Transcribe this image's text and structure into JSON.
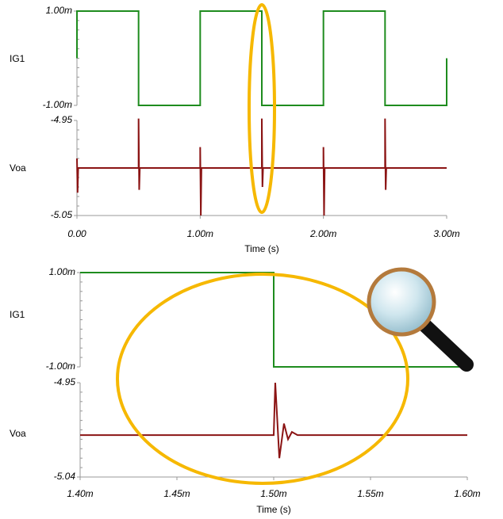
{
  "chart_data": [
    {
      "type": "line",
      "ylabel": "IG1",
      "color": "#1e8c1e",
      "x": [
        0,
        0,
        0.0005,
        0.0005,
        0.001,
        0.001,
        0.0015,
        0.0015,
        0.002,
        0.002,
        0.0025,
        0.0025,
        0.003,
        0.003
      ],
      "values": [
        0,
        0.001,
        0.001,
        -0.001,
        -0.001,
        0.001,
        0.001,
        -0.001,
        -0.001,
        0.001,
        0.001,
        -0.001,
        -0.001,
        0
      ],
      "xlim": [
        0,
        0.003
      ],
      "ylim": [
        -0.001,
        0.001
      ],
      "yticks": [
        {
          "value": 0.001,
          "label": "1.00m"
        },
        {
          "value": -0.001,
          "label": "-1.00m"
        }
      ]
    },
    {
      "type": "line",
      "ylabel": "Voa",
      "xlabel": "Time (s)",
      "color": "#8b1414",
      "x": [
        0,
        5e-06,
        1e-05,
        0.0005,
        0.0005,
        0.000505,
        0.00051,
        0.001,
        0.001,
        0.001005,
        0.00101,
        0.0015,
        0.0015,
        0.001505,
        0.00151,
        0.002,
        0.002,
        0.002005,
        0.00201,
        0.0025,
        0.0025,
        0.002505,
        0.00251,
        0.003
      ],
      "values": [
        -4.99,
        -5.026,
        -5.0,
        -5.0,
        -4.948,
        -5.023,
        -5.0,
        -5.0,
        -4.978,
        -5.05,
        -5.0,
        -5.0,
        -4.948,
        -5.02,
        -5.0,
        -5.0,
        -4.978,
        -5.05,
        -5.0,
        -5.0,
        -4.948,
        -5.023,
        -5.0,
        -5.0
      ],
      "xlim": [
        0,
        0.003
      ],
      "ylim": [
        -5.05,
        -4.95
      ],
      "yticks": [
        -4.95,
        -5.05
      ],
      "xticks": [
        {
          "value": 0,
          "label": "0.00"
        },
        {
          "value": 0.001,
          "label": "1.00m"
        },
        {
          "value": 0.002,
          "label": "2.00m"
        },
        {
          "value": 0.003,
          "label": "3.00m"
        }
      ]
    },
    {
      "type": "line",
      "ylabel": "IG1",
      "color": "#1e8c1e",
      "x": [
        0.0014,
        0.0015,
        0.0015,
        0.0016
      ],
      "values": [
        0.001,
        0.001,
        -0.001,
        -0.001
      ],
      "xlim": [
        0.0014,
        0.0016
      ],
      "ylim": [
        -0.001,
        0.001
      ],
      "yticks": [
        {
          "value": 0.001,
          "label": "1.00m"
        },
        {
          "value": -0.001,
          "label": "-1.00m"
        }
      ]
    },
    {
      "type": "line",
      "ylabel": "Voa",
      "xlabel": "Time (s)",
      "color": "#8b1414",
      "x": [
        0.0014,
        0.0015,
        0.0015008,
        0.0015029,
        0.0015053,
        0.0015074,
        0.0015094,
        0.0015123,
        0.0016
      ],
      "values": [
        -5.0,
        -5.0,
        -4.95,
        -5.022,
        -4.989,
        -5.004,
        -4.997,
        -5.0,
        -5.0
      ],
      "xlim": [
        0.0014,
        0.0016
      ],
      "ylim": [
        -5.04,
        -4.95
      ],
      "yticks": [
        -4.95,
        -5.04
      ],
      "xticks": [
        {
          "value": 0.0014,
          "label": "1.40m"
        },
        {
          "value": 0.00145,
          "label": "1.45m"
        },
        {
          "value": 0.0015,
          "label": "1.50m"
        },
        {
          "value": 0.00155,
          "label": "1.55m"
        },
        {
          "value": 0.0016,
          "label": "1.60m"
        }
      ]
    }
  ]
}
